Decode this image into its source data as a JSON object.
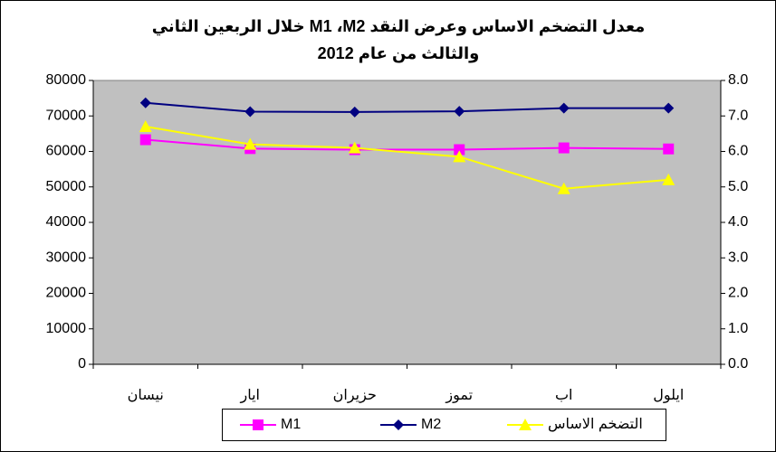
{
  "chart_data": {
    "type": "line",
    "title": "معدل التضخم الاساس وعرض النقد M1 ،M2 خلال الربعين الثاني والثالث من عام 2012",
    "categories": [
      "نيسان",
      "ايار",
      "حزيران",
      "تموز",
      "اب",
      "ايلول"
    ],
    "series": [
      {
        "name": "M1",
        "color": "#ff00ff",
        "marker": "square",
        "values": [
          63300,
          60800,
          60500,
          60500,
          61000,
          60700
        ]
      },
      {
        "name": "M2",
        "color": "#000080",
        "marker": "diamond",
        "values": [
          73700,
          71200,
          71100,
          71300,
          72200,
          72200
        ]
      },
      {
        "name": "التضخم الاساس",
        "color": "#ffff00",
        "marker": "triangle",
        "axis": "y2",
        "values": [
          6.7,
          6.2,
          6.1,
          5.85,
          4.95,
          5.2
        ]
      }
    ],
    "ylim": [
      0,
      80000
    ],
    "yticks": [
      0,
      10000,
      20000,
      30000,
      40000,
      50000,
      60000,
      70000,
      80000
    ],
    "y2lim": [
      0,
      8
    ],
    "y2ticks": [
      {
        "value": 0,
        "label": "0.0"
      },
      {
        "value": 1,
        "label": "1.0"
      },
      {
        "value": 2,
        "label": "2.0"
      },
      {
        "value": 3,
        "label": "3.0"
      },
      {
        "value": 4,
        "label": "4.0"
      },
      {
        "value": 5,
        "label": "5.0"
      },
      {
        "value": 6,
        "label": "6.0"
      },
      {
        "value": 7,
        "label": "7.0"
      },
      {
        "value": 8,
        "label": "8.0"
      }
    ],
    "legend": "bottom",
    "plot_color": "#c0c0c0"
  }
}
